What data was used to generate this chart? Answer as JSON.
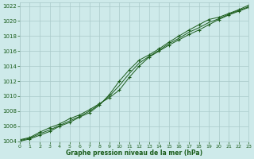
{
  "title": "Graphe pression niveau de la mer (hPa)",
  "background_color": "#ceeaea",
  "grid_color": "#aacaca",
  "line_color": "#1a5c1a",
  "xlim": [
    0,
    23
  ],
  "ylim": [
    1004,
    1022.5
  ],
  "xticks": [
    0,
    1,
    2,
    3,
    4,
    5,
    6,
    7,
    8,
    9,
    10,
    11,
    12,
    13,
    14,
    15,
    16,
    17,
    18,
    19,
    20,
    21,
    22,
    23
  ],
  "yticks": [
    1004,
    1006,
    1008,
    1010,
    1012,
    1014,
    1016,
    1018,
    1020,
    1022
  ],
  "series1_x": [
    0,
    1,
    2,
    3,
    4,
    5,
    6,
    7,
    8,
    9,
    10,
    11,
    12,
    13,
    14,
    15,
    16,
    17,
    18,
    19,
    20,
    21,
    22,
    23
  ],
  "series1_y": [
    1004.2,
    1004.5,
    1005.2,
    1005.8,
    1006.3,
    1007.0,
    1007.5,
    1008.2,
    1009.0,
    1009.8,
    1010.8,
    1012.5,
    1014.0,
    1015.2,
    1016.0,
    1016.8,
    1017.5,
    1018.2,
    1018.8,
    1019.5,
    1020.2,
    1020.8,
    1021.3,
    1021.8
  ],
  "series2_x": [
    0,
    1,
    2,
    3,
    4,
    5,
    6,
    7,
    8,
    9,
    10,
    11,
    12,
    13,
    14,
    15,
    16,
    17,
    18,
    19,
    20,
    21,
    22,
    23
  ],
  "series2_y": [
    1004.0,
    1004.3,
    1004.8,
    1005.3,
    1006.0,
    1006.5,
    1007.2,
    1007.8,
    1008.8,
    1010.2,
    1012.0,
    1013.5,
    1014.8,
    1015.5,
    1016.3,
    1017.2,
    1018.0,
    1018.8,
    1019.5,
    1020.2,
    1020.5,
    1021.0,
    1021.5,
    1022.1
  ],
  "series3_x": [
    0,
    1,
    2,
    3,
    4,
    5,
    6,
    7,
    8,
    9,
    10,
    11,
    12,
    13,
    14,
    15,
    16,
    17,
    18,
    19,
    20,
    21,
    22,
    23
  ],
  "series3_y": [
    1004.1,
    1004.4,
    1005.0,
    1005.5,
    1006.1,
    1006.7,
    1007.3,
    1008.0,
    1008.9,
    1010.0,
    1011.4,
    1013.0,
    1014.4,
    1015.3,
    1016.1,
    1017.0,
    1017.7,
    1018.5,
    1019.1,
    1019.8,
    1020.3,
    1020.9,
    1021.4,
    1021.9
  ]
}
